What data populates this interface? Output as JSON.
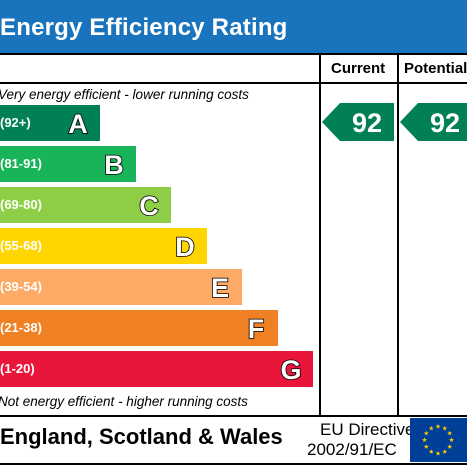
{
  "title": "Energy Efficiency Rating",
  "columns": {
    "current": "Current",
    "potential": "Potential"
  },
  "top_note": "Very energy efficient - lower running costs",
  "bottom_note": "Not energy efficient - higher running costs",
  "footer": {
    "country": "England, Scotland & Wales",
    "directive_line1": "EU Directive",
    "directive_line2": "2002/91/EC"
  },
  "colors": {
    "header": "#1a74bd",
    "indicator": "#008054",
    "flag": "#003f98",
    "stars": "#ffcc00"
  },
  "chart_data": {
    "type": "bar",
    "title": "Energy Efficiency Rating",
    "categories": [
      "A",
      "B",
      "C",
      "D",
      "E",
      "F",
      "G"
    ],
    "ranges": [
      "(92+)",
      "(81-91)",
      "(69-80)",
      "(55-68)",
      "(39-54)",
      "(21-38)",
      "(1-20)"
    ],
    "band_colors": [
      "#008054",
      "#19b459",
      "#8dce46",
      "#ffd500",
      "#fcaa65",
      "#ef8023",
      "#e9153b"
    ],
    "current": {
      "value": 92,
      "band": "A"
    },
    "potential": {
      "value": 92,
      "band": "A"
    }
  }
}
